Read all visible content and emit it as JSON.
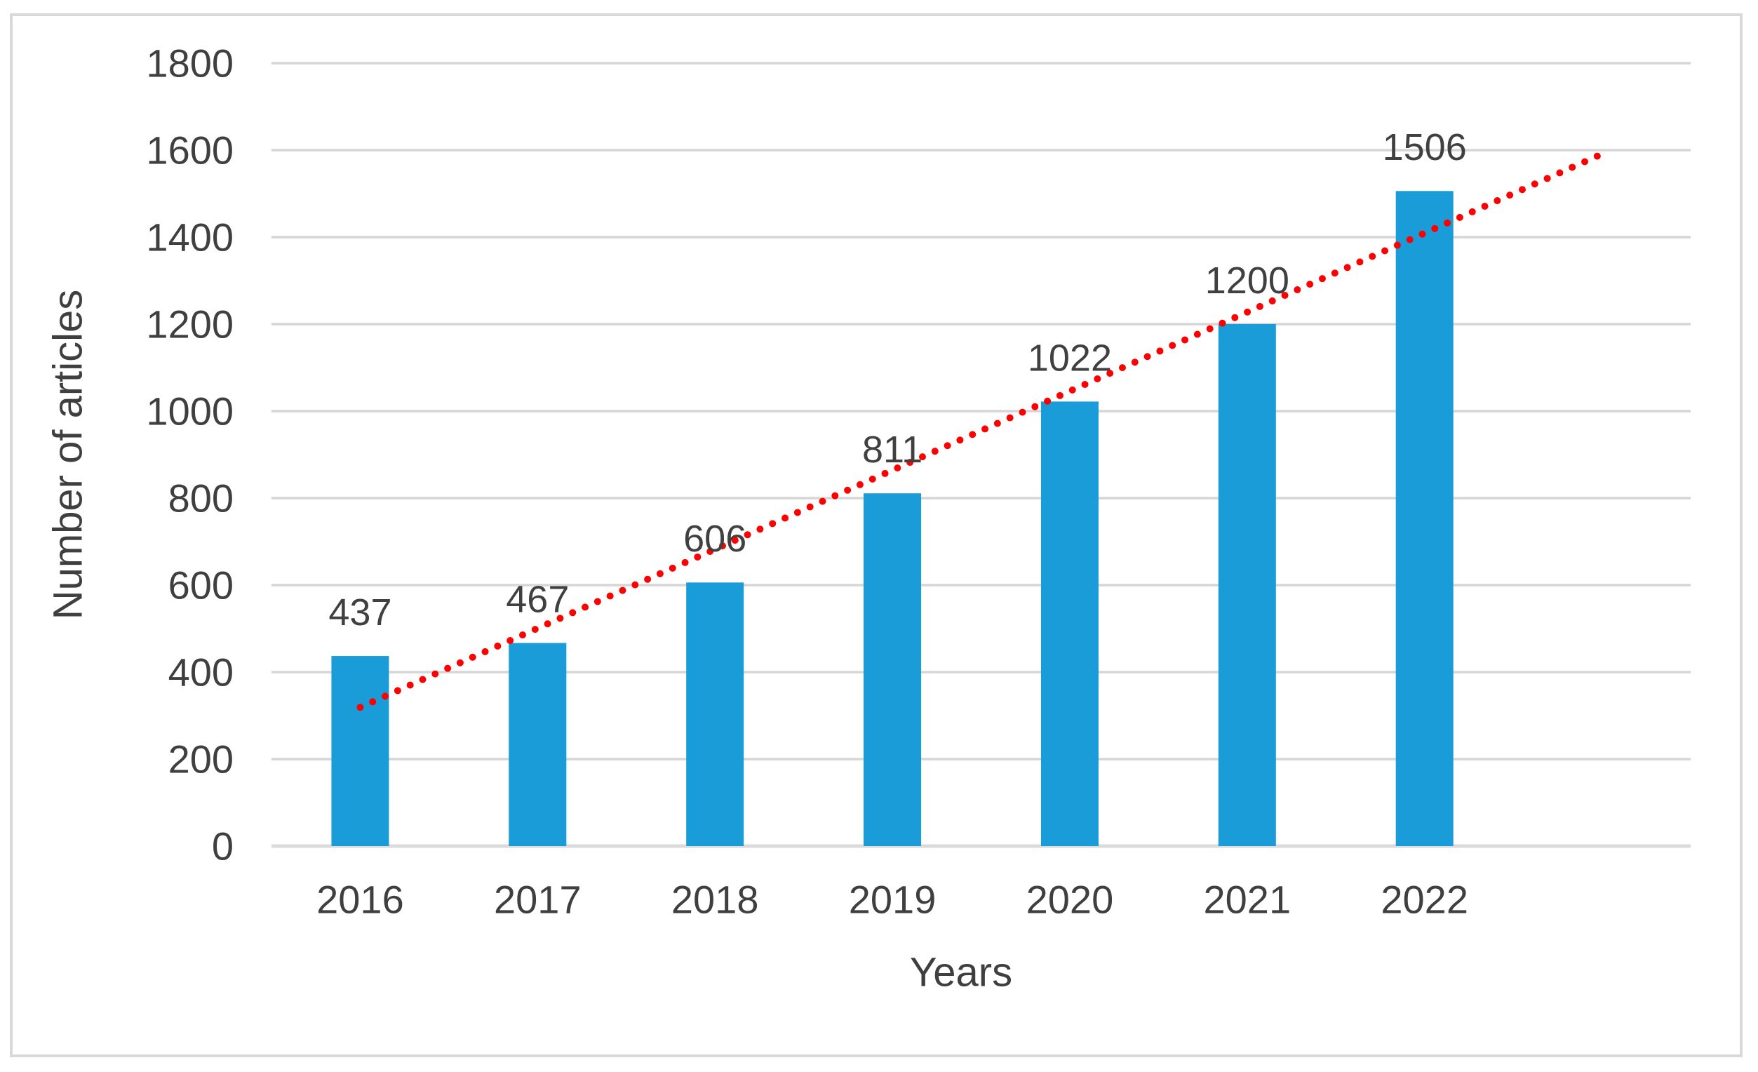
{
  "figure": {
    "background": "#FFFFFF",
    "border_color": "#D9D9D9"
  },
  "chart_data": {
    "type": "bar",
    "title": "",
    "categories": [
      "2016",
      "2017",
      "2018",
      "2019",
      "2020",
      "2021",
      "2022"
    ],
    "values": [
      437,
      467,
      606,
      811,
      1022,
      1200,
      1506
    ],
    "xlabel": "Years",
    "ylabel": "Number of articles",
    "ylim": [
      0,
      1800
    ],
    "ytick_step": 200,
    "yticks": [
      0,
      200,
      400,
      600,
      800,
      1000,
      1200,
      1400,
      1600,
      1800
    ],
    "grid": true,
    "legend": false,
    "bar_color": "#199CD8",
    "gridline_color": "#D6D6D6",
    "axis_line_color": "#DBDBDB",
    "axis_text_color": "#3F3F3F",
    "data_label_color": "#404040",
    "trendline": {
      "type": "linear",
      "style": "dotted",
      "color": "#FF0000",
      "start_value": 319,
      "end_value": 1591,
      "forecast_forward_periods": 1
    }
  }
}
